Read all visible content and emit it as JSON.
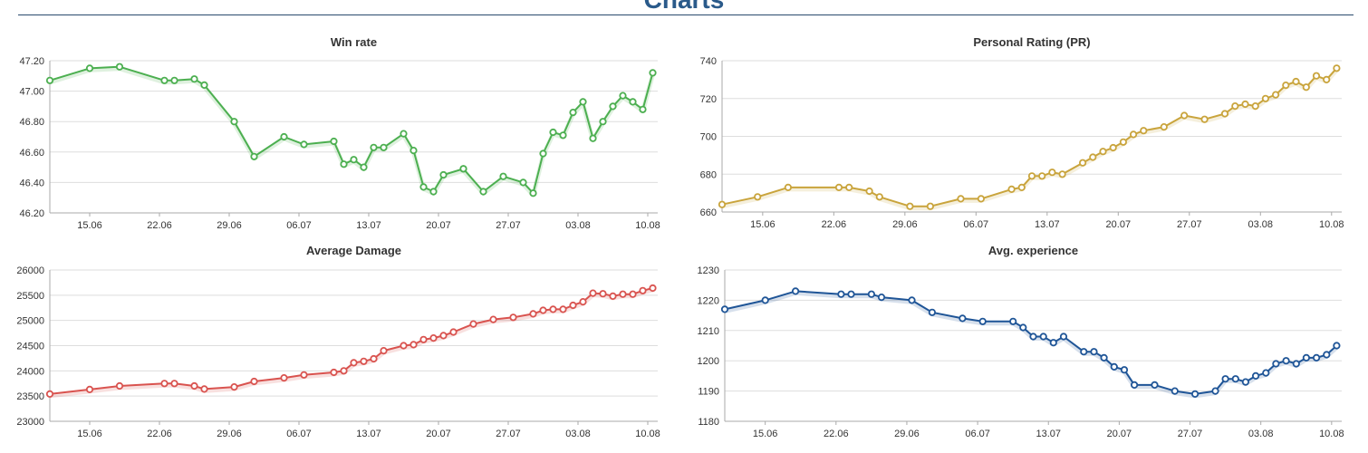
{
  "page": {
    "heading": "Charts"
  },
  "colors": {
    "win_rate": "#4caf50",
    "pr": "#c9a43c",
    "damage": "#d9534f",
    "experience": "#1f5597",
    "grid": "#dddddd",
    "axis": "#aaaaaa",
    "text": "#333333"
  },
  "chart_data": [
    {
      "type": "line",
      "title": "Win rate",
      "color": "#4caf50",
      "xrange": [
        0,
        61
      ],
      "ylim": [
        46.2,
        47.2
      ],
      "yticks": [
        46.2,
        46.4,
        46.6,
        46.8,
        47.0,
        47.2
      ],
      "ytick_labels": [
        "46.20",
        "46.40",
        "46.60",
        "46.80",
        "47.00",
        "47.20"
      ],
      "xticks": [
        4,
        11,
        18,
        25,
        32,
        39,
        46,
        53,
        60
      ],
      "xtick_labels": [
        "15.06",
        "22.06",
        "29.06",
        "06.07",
        "13.07",
        "20.07",
        "27.07",
        "03.08",
        "10.08"
      ],
      "grid": true,
      "x": [
        0,
        4,
        7,
        11.5,
        12.5,
        14.5,
        15.5,
        18.5,
        20.5,
        23.5,
        25.5,
        28.5,
        29.5,
        30.5,
        31.5,
        32.5,
        33.5,
        35.5,
        36.5,
        37.5,
        38.5,
        39.5,
        41.5,
        41.5,
        43.5,
        45.5,
        47.5,
        48.5,
        49.5,
        50.5,
        51.5,
        52.5,
        53.5,
        54.5,
        55.5,
        56.5,
        57.5,
        58.5,
        59.5,
        60.5
      ],
      "y": [
        47.07,
        47.15,
        47.16,
        47.07,
        47.07,
        47.08,
        47.04,
        46.8,
        46.57,
        46.7,
        46.65,
        46.67,
        46.52,
        46.55,
        46.5,
        46.63,
        46.63,
        46.72,
        46.61,
        46.37,
        46.34,
        46.45,
        46.49,
        46.49,
        46.34,
        46.44,
        46.4,
        46.33,
        46.59,
        46.73,
        46.71,
        46.86,
        46.93,
        46.69,
        46.8,
        46.9,
        46.97,
        46.93,
        46.88,
        47.12
      ]
    },
    {
      "type": "line",
      "title": "Personal Rating (PR)",
      "color": "#c9a43c",
      "xrange": [
        0,
        61
      ],
      "ylim": [
        660,
        740
      ],
      "yticks": [
        660,
        680,
        700,
        720,
        740
      ],
      "ytick_labels": [
        "660",
        "680",
        "700",
        "720",
        "740"
      ],
      "xticks": [
        4,
        11,
        18,
        25,
        32,
        39,
        46,
        53,
        60
      ],
      "xtick_labels": [
        "15.06",
        "22.06",
        "29.06",
        "06.07",
        "13.07",
        "20.07",
        "27.07",
        "03.08",
        "10.08"
      ],
      "grid": true,
      "x": [
        0,
        3.5,
        6.5,
        11.5,
        12.5,
        14.5,
        15.5,
        18.5,
        20.5,
        23.5,
        25.5,
        28.5,
        29.5,
        30.5,
        31.5,
        32.5,
        33.5,
        35.5,
        36.5,
        37.5,
        38.5,
        39.5,
        40.5,
        41.5,
        43.5,
        45.5,
        47.5,
        49.5,
        50.5,
        51.5,
        52.5,
        53.5,
        54.5,
        55.5,
        56.5,
        57.5,
        58.5,
        59.5,
        60.5
      ],
      "y": [
        664,
        668,
        673,
        673,
        673,
        671,
        668,
        663,
        663,
        667,
        667,
        672,
        673,
        679,
        679,
        681,
        680,
        686,
        689,
        692,
        694,
        697,
        701,
        703,
        705,
        711,
        709,
        712,
        716,
        717,
        716,
        720,
        722,
        727,
        729,
        726,
        732,
        730,
        736
      ]
    },
    {
      "type": "line",
      "title": "Average Damage",
      "color": "#d9534f",
      "xrange": [
        0,
        61
      ],
      "ylim": [
        23000,
        26000
      ],
      "yticks": [
        23000,
        23500,
        24000,
        24500,
        25000,
        25500,
        26000
      ],
      "ytick_labels": [
        "23000",
        "23500",
        "24000",
        "24500",
        "25000",
        "25500",
        "26000"
      ],
      "xticks": [
        4,
        11,
        18,
        25,
        32,
        39,
        46,
        53,
        60
      ],
      "xtick_labels": [
        "15.06",
        "22.06",
        "29.06",
        "06.07",
        "13.07",
        "20.07",
        "27.07",
        "03.08",
        "10.08"
      ],
      "grid": true,
      "x": [
        0,
        4,
        7,
        11.5,
        12.5,
        14.5,
        15.5,
        18.5,
        20.5,
        23.5,
        25.5,
        28.5,
        29.5,
        30.5,
        31.5,
        32.5,
        33.5,
        35.5,
        36.5,
        37.5,
        38.5,
        39.5,
        40.5,
        42.5,
        44.5,
        46.5,
        48.5,
        49.5,
        50.5,
        51.5,
        52.5,
        53.5,
        54.5,
        55.5,
        56.5,
        57.5,
        58.5,
        59.5,
        60.5
      ],
      "y": [
        23540,
        23630,
        23700,
        23750,
        23750,
        23700,
        23640,
        23680,
        23790,
        23860,
        23920,
        23970,
        24000,
        24160,
        24190,
        24240,
        24400,
        24500,
        24520,
        24620,
        24650,
        24700,
        24770,
        24930,
        25020,
        25060,
        25130,
        25200,
        25220,
        25220,
        25300,
        25370,
        25540,
        25530,
        25480,
        25520,
        25520,
        25590,
        25640
      ]
    },
    {
      "type": "line",
      "title": "Avg. experience",
      "color": "#1f5597",
      "xrange": [
        0,
        61
      ],
      "ylim": [
        1180,
        1230
      ],
      "yticks": [
        1180,
        1190,
        1200,
        1210,
        1220,
        1230
      ],
      "ytick_labels": [
        "1180",
        "1190",
        "1200",
        "1210",
        "1220",
        "1230"
      ],
      "xticks": [
        4,
        11,
        18,
        25,
        32,
        39,
        46,
        53,
        60
      ],
      "xtick_labels": [
        "15.06",
        "22.06",
        "29.06",
        "06.07",
        "13.07",
        "20.07",
        "27.07",
        "03.08",
        "10.08"
      ],
      "grid": true,
      "x": [
        0,
        4,
        7,
        11.5,
        12.5,
        14.5,
        15.5,
        18.5,
        20.5,
        23.5,
        25.5,
        28.5,
        29.5,
        30.5,
        31.5,
        32.5,
        33.5,
        35.5,
        36.5,
        37.5,
        38.5,
        39.5,
        40.5,
        42.5,
        44.5,
        46.5,
        48.5,
        49.5,
        50.5,
        51.5,
        52.5,
        53.5,
        54.5,
        55.5,
        56.5,
        57.5,
        58.5,
        59.5,
        60.5
      ],
      "y": [
        1217,
        1220,
        1223,
        1222,
        1222,
        1222,
        1221,
        1220,
        1216,
        1214,
        1213,
        1213,
        1211,
        1208,
        1208,
        1206,
        1208,
        1203,
        1203,
        1201,
        1198,
        1197,
        1192,
        1192,
        1190,
        1189,
        1190,
        1194,
        1194,
        1193,
        1195,
        1196,
        1199,
        1200,
        1199,
        1201,
        1201,
        1202,
        1205
      ]
    }
  ]
}
